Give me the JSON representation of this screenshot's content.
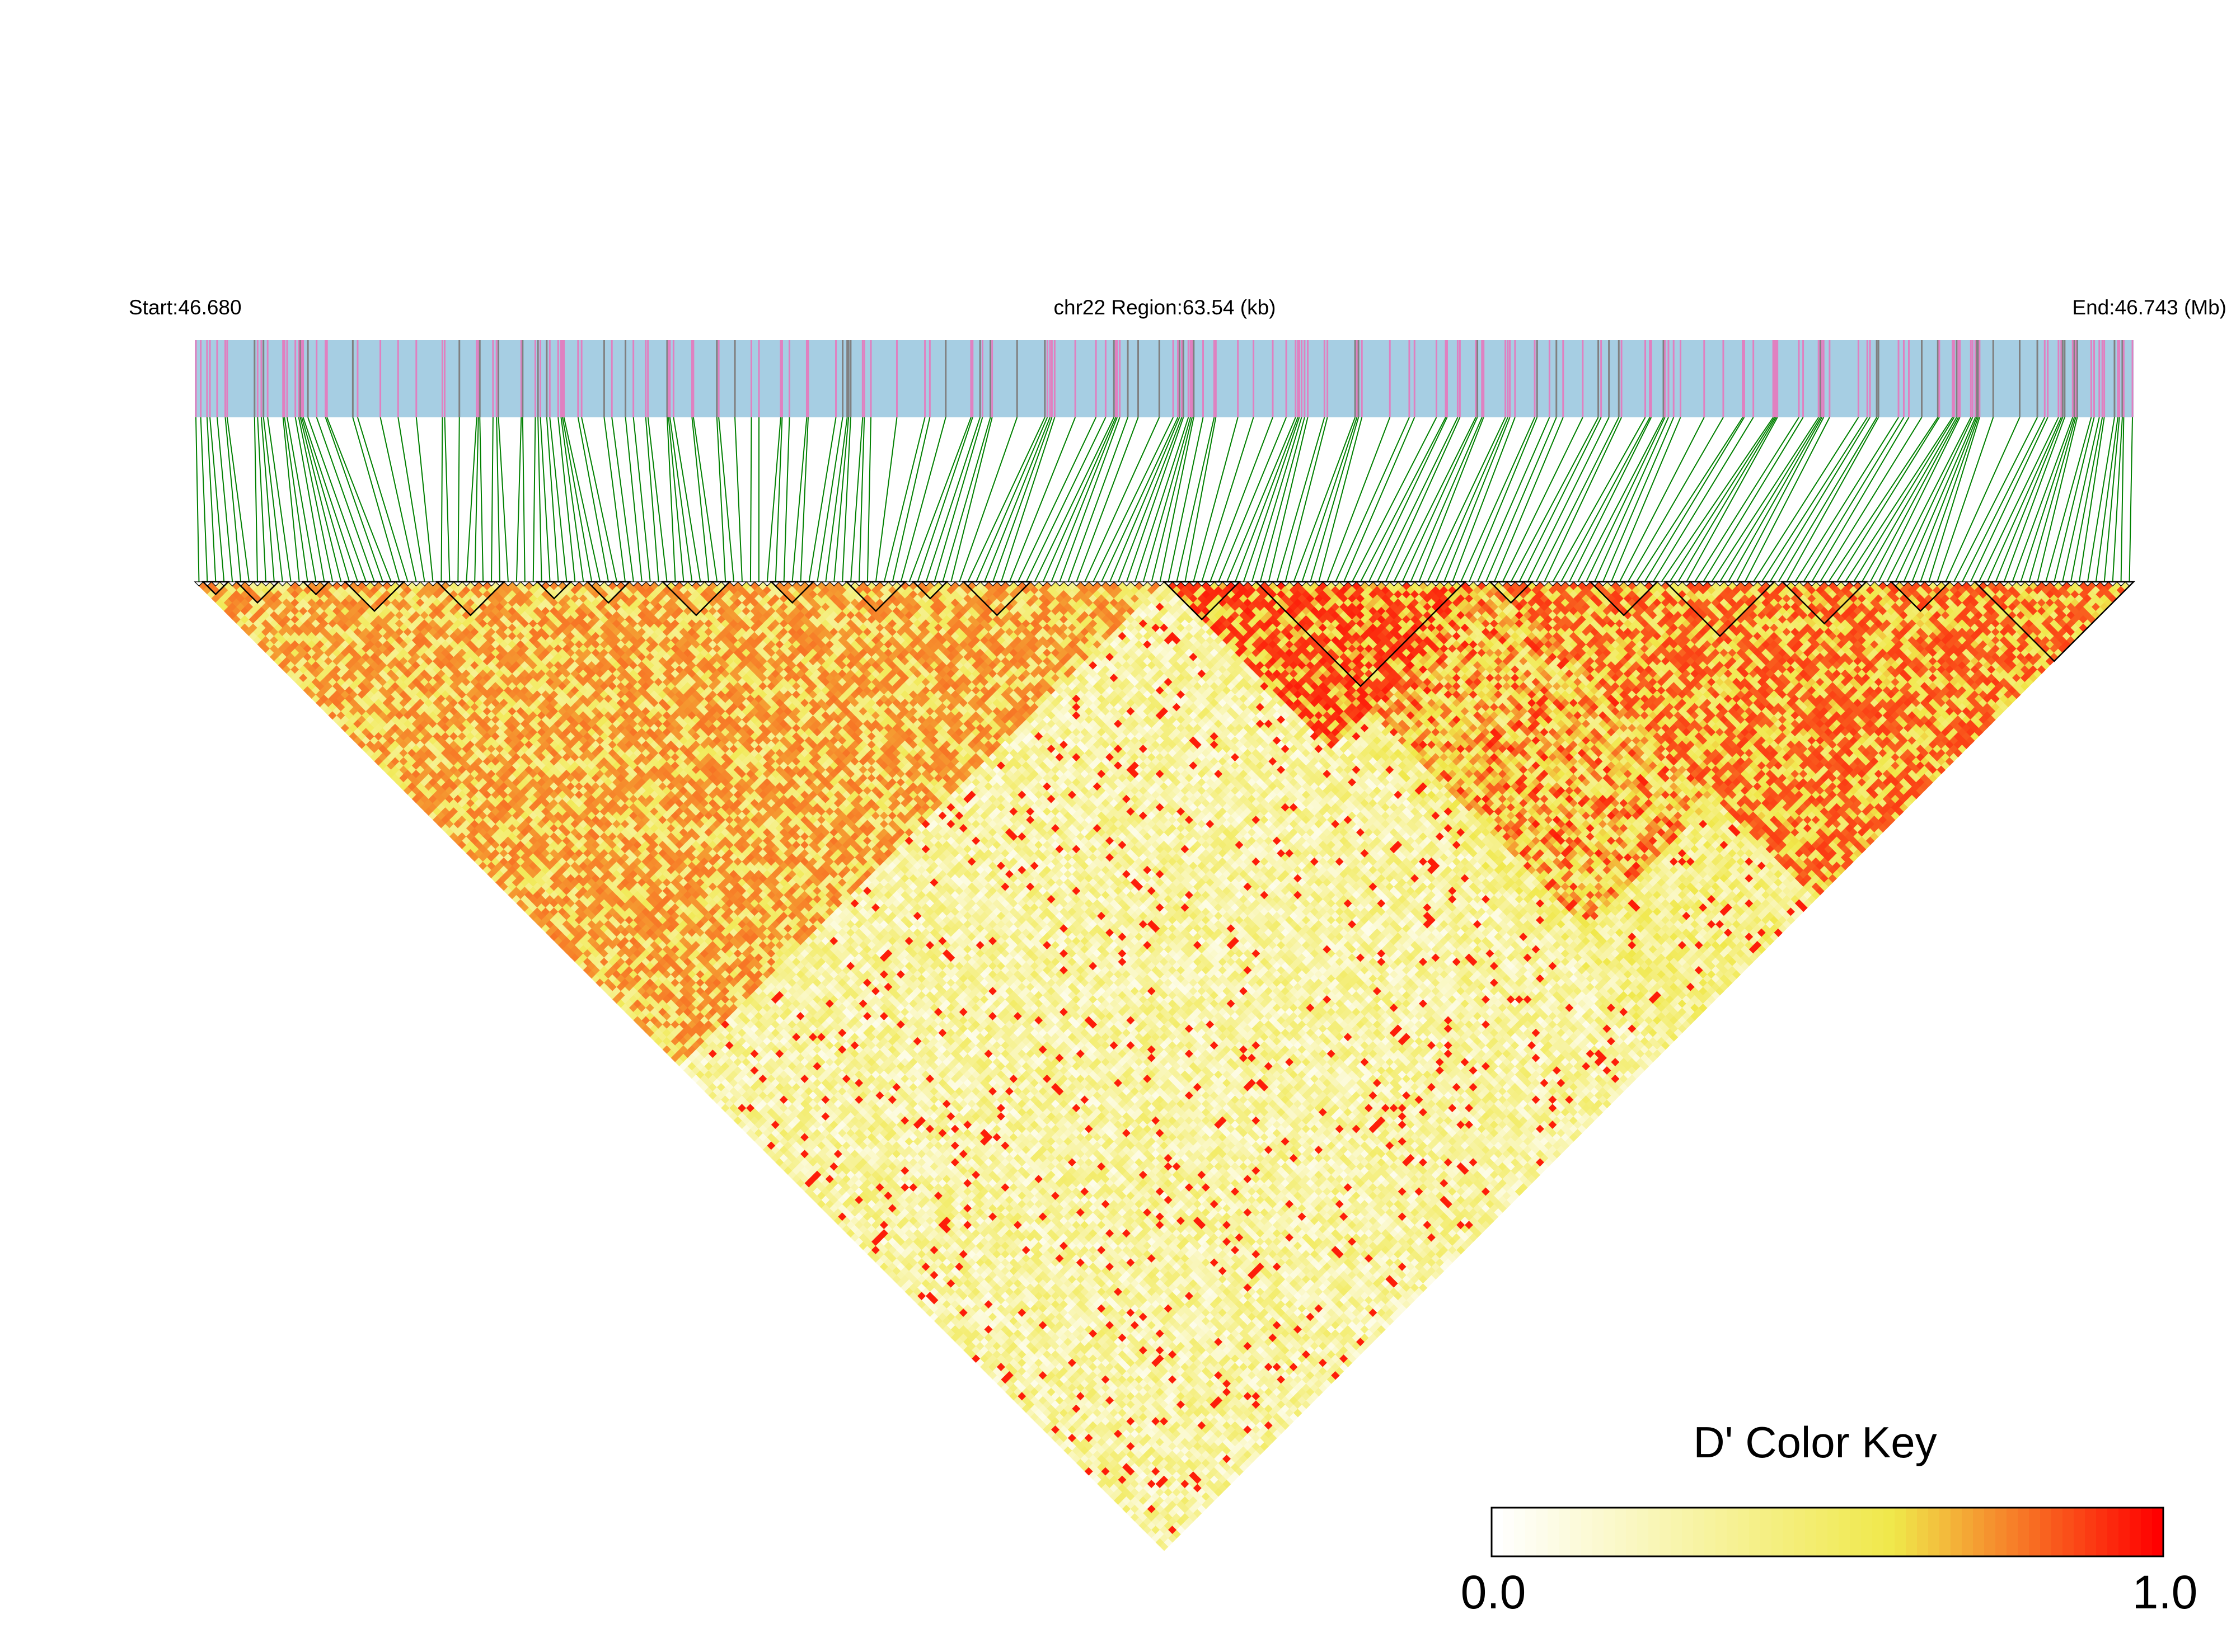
{
  "header": {
    "start_label": "Start:46.680",
    "region_label": "chr22 Region:63.54 (kb)",
    "end_label": "End:46.743 (Mb)"
  },
  "chart_data": {
    "type": "heatmap",
    "subtype": "ld-triangle",
    "chromosome": "chr22",
    "start_mb": 46.68,
    "end_mb": 46.743,
    "region_kb": 63.54,
    "n_snps": 232,
    "metric": "D'",
    "blocks": [
      {
        "from": 0,
        "to": 116,
        "level": 0.8
      },
      {
        "from": 116,
        "to": 156,
        "level": 0.95
      },
      {
        "from": 156,
        "to": 232,
        "level": 0.9
      },
      {
        "from": 125,
        "to": 208,
        "level": 0.7
      },
      {
        "from": 120,
        "to": 232,
        "level": 0.35
      },
      {
        "from": 0,
        "to": 232,
        "level": 0.25
      }
    ],
    "ld_blocks": [
      [
        1,
        4
      ],
      [
        5,
        10
      ],
      [
        13,
        16
      ],
      [
        18,
        25
      ],
      [
        29,
        37
      ],
      [
        41,
        45
      ],
      [
        47,
        52
      ],
      [
        56,
        64
      ],
      [
        69,
        74
      ],
      [
        78,
        85
      ],
      [
        86,
        90
      ],
      [
        92,
        100
      ],
      [
        116,
        125
      ],
      [
        127,
        152
      ],
      [
        155,
        160
      ],
      [
        167,
        175
      ],
      [
        176,
        189
      ],
      [
        190,
        200
      ],
      [
        203,
        210
      ],
      [
        213,
        232
      ]
    ],
    "legend": {
      "title": "D' Color Key",
      "min_label": "0.0",
      "max_label": "1.0",
      "range": [
        0.0,
        1.0
      ],
      "colors": [
        "#ffffff",
        "#f0e84a",
        "#ff0000"
      ]
    },
    "colors": {
      "gene_track": "#a6cee3",
      "snp_mark_pink": "#e080c0",
      "snp_mark_gray": "#808080",
      "connector_lines": "#008000",
      "high_ld": "#ff0000",
      "mid_ld": "#f0e84a",
      "low_ld": "#ffffff"
    }
  }
}
